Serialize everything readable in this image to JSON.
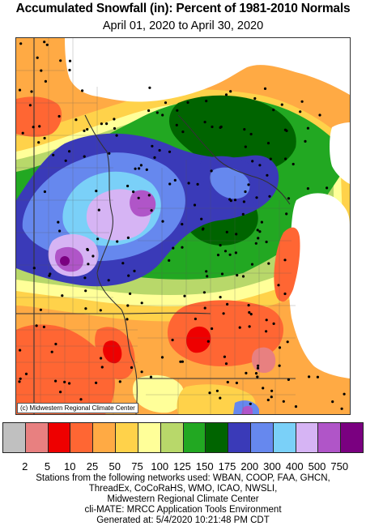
{
  "title": "Accumulated Snowfall (in): Percent of 1981-2010 Normals",
  "subtitle": "April 01, 2020 to April 30, 2020",
  "credit": "(c) Midwestern Regional Climate Center",
  "legend": {
    "colors": [
      "#c0c0c0",
      "#e88080",
      "#ee0000",
      "#ff6633",
      "#ffaa44",
      "#ffd24a",
      "#ffff99",
      "#b8d86a",
      "#22a822",
      "#006400",
      "#3a3ab8",
      "#6688ee",
      "#7ad0f8",
      "#d6b4f4",
      "#b055c8",
      "#7a0080"
    ],
    "labels": [
      "2",
      "5",
      "10",
      "25",
      "50",
      "75",
      "100",
      "125",
      "150",
      "175",
      "200",
      "300",
      "400",
      "500",
      "750"
    ]
  },
  "footer": {
    "line1": "Stations from the following networks used: WBAN, COOP, FAA, GHCN,",
    "line2": "ThreadEx, CoCoRaHS, WMO, ICAO, NWSLI,",
    "line3": "Midwestern Regional Climate Center",
    "line4": "cli-MATE: MRCC Application Tools Environment",
    "line5": "Generated at: 5/4/2020 10:21:48 PM CDT"
  }
}
